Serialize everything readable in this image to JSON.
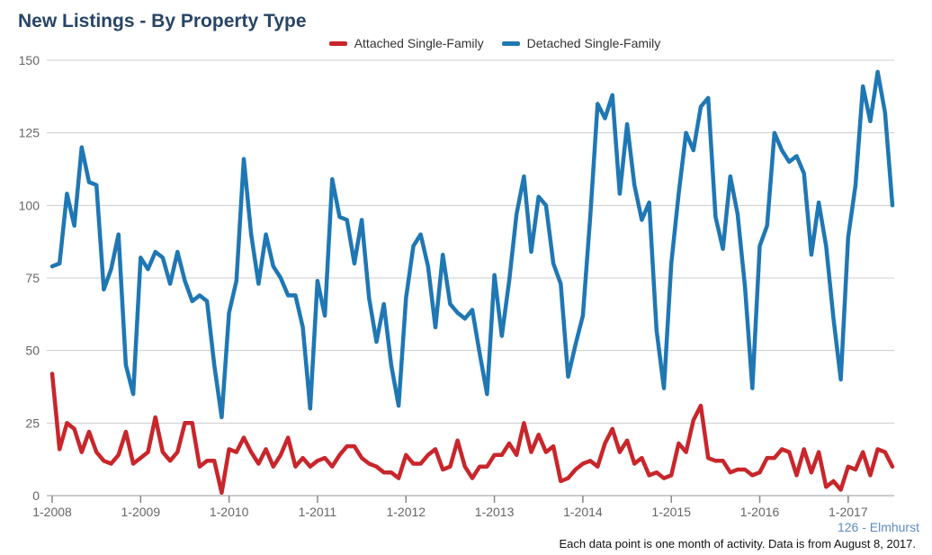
{
  "title": "New Listings - By Property Type",
  "footer": {
    "area_label": "126 - Elmhurst",
    "note": "Each data point is one month of activity. Data is from August 8, 2017."
  },
  "chart_data": {
    "type": "line",
    "title": "New Listings - By Property Type",
    "xlabel": "",
    "ylabel": "",
    "ylim": [
      0,
      150
    ],
    "y_ticks": [
      0,
      25,
      50,
      75,
      100,
      125,
      150
    ],
    "x_ticks": [
      "1-2008",
      "1-2009",
      "1-2010",
      "1-2011",
      "1-2012",
      "1-2013",
      "1-2014",
      "1-2015",
      "1-2016",
      "1-2017"
    ],
    "x_start": "1-2008",
    "x_end": "7-2017",
    "grid": true,
    "legend_position": "top",
    "series": [
      {
        "name": "Attached Single-Family",
        "color": "#c8262b",
        "values": [
          42,
          16,
          25,
          23,
          15,
          22,
          15,
          12,
          11,
          14,
          22,
          11,
          13,
          15,
          27,
          15,
          12,
          15,
          25,
          25,
          10,
          12,
          12,
          1,
          16,
          15,
          20,
          15,
          11,
          16,
          10,
          14,
          20,
          10,
          13,
          10,
          12,
          13,
          10,
          14,
          17,
          17,
          13,
          11,
          10,
          8,
          8,
          6,
          14,
          11,
          11,
          14,
          16,
          9,
          10,
          19,
          10,
          6,
          10,
          10,
          14,
          14,
          18,
          14,
          25,
          15,
          21,
          15,
          17,
          5,
          6,
          9,
          11,
          12,
          10,
          18,
          23,
          15,
          19,
          11,
          13,
          7,
          8,
          6,
          7,
          18,
          15,
          26,
          31,
          13,
          12,
          12,
          8,
          9,
          9,
          7,
          8,
          13,
          13,
          16,
          15,
          7,
          16,
          8,
          15,
          3,
          5,
          2,
          10,
          9,
          15,
          7,
          16,
          15,
          10
        ]
      },
      {
        "name": "Detached Single-Family",
        "color": "#1f77b4",
        "values": [
          79,
          80,
          104,
          93,
          120,
          108,
          107,
          71,
          78,
          90,
          45,
          35,
          82,
          78,
          84,
          82,
          73,
          84,
          74,
          67,
          69,
          67,
          45,
          27,
          63,
          74,
          116,
          90,
          73,
          90,
          79,
          75,
          69,
          69,
          58,
          30,
          74,
          62,
          109,
          96,
          95,
          80,
          95,
          68,
          53,
          66,
          45,
          31,
          68,
          86,
          90,
          79,
          58,
          83,
          66,
          63,
          61,
          64,
          49,
          35,
          76,
          55,
          74,
          97,
          110,
          84,
          103,
          100,
          80,
          73,
          41,
          52,
          62,
          96,
          135,
          130,
          138,
          104,
          128,
          107,
          95,
          101,
          57,
          37,
          80,
          104,
          125,
          119,
          134,
          137,
          96,
          85,
          110,
          97,
          72,
          37,
          86,
          93,
          125,
          119,
          115,
          117,
          111,
          83,
          101,
          86,
          61,
          40,
          89,
          107,
          141,
          129,
          146,
          132,
          100
        ]
      }
    ]
  }
}
